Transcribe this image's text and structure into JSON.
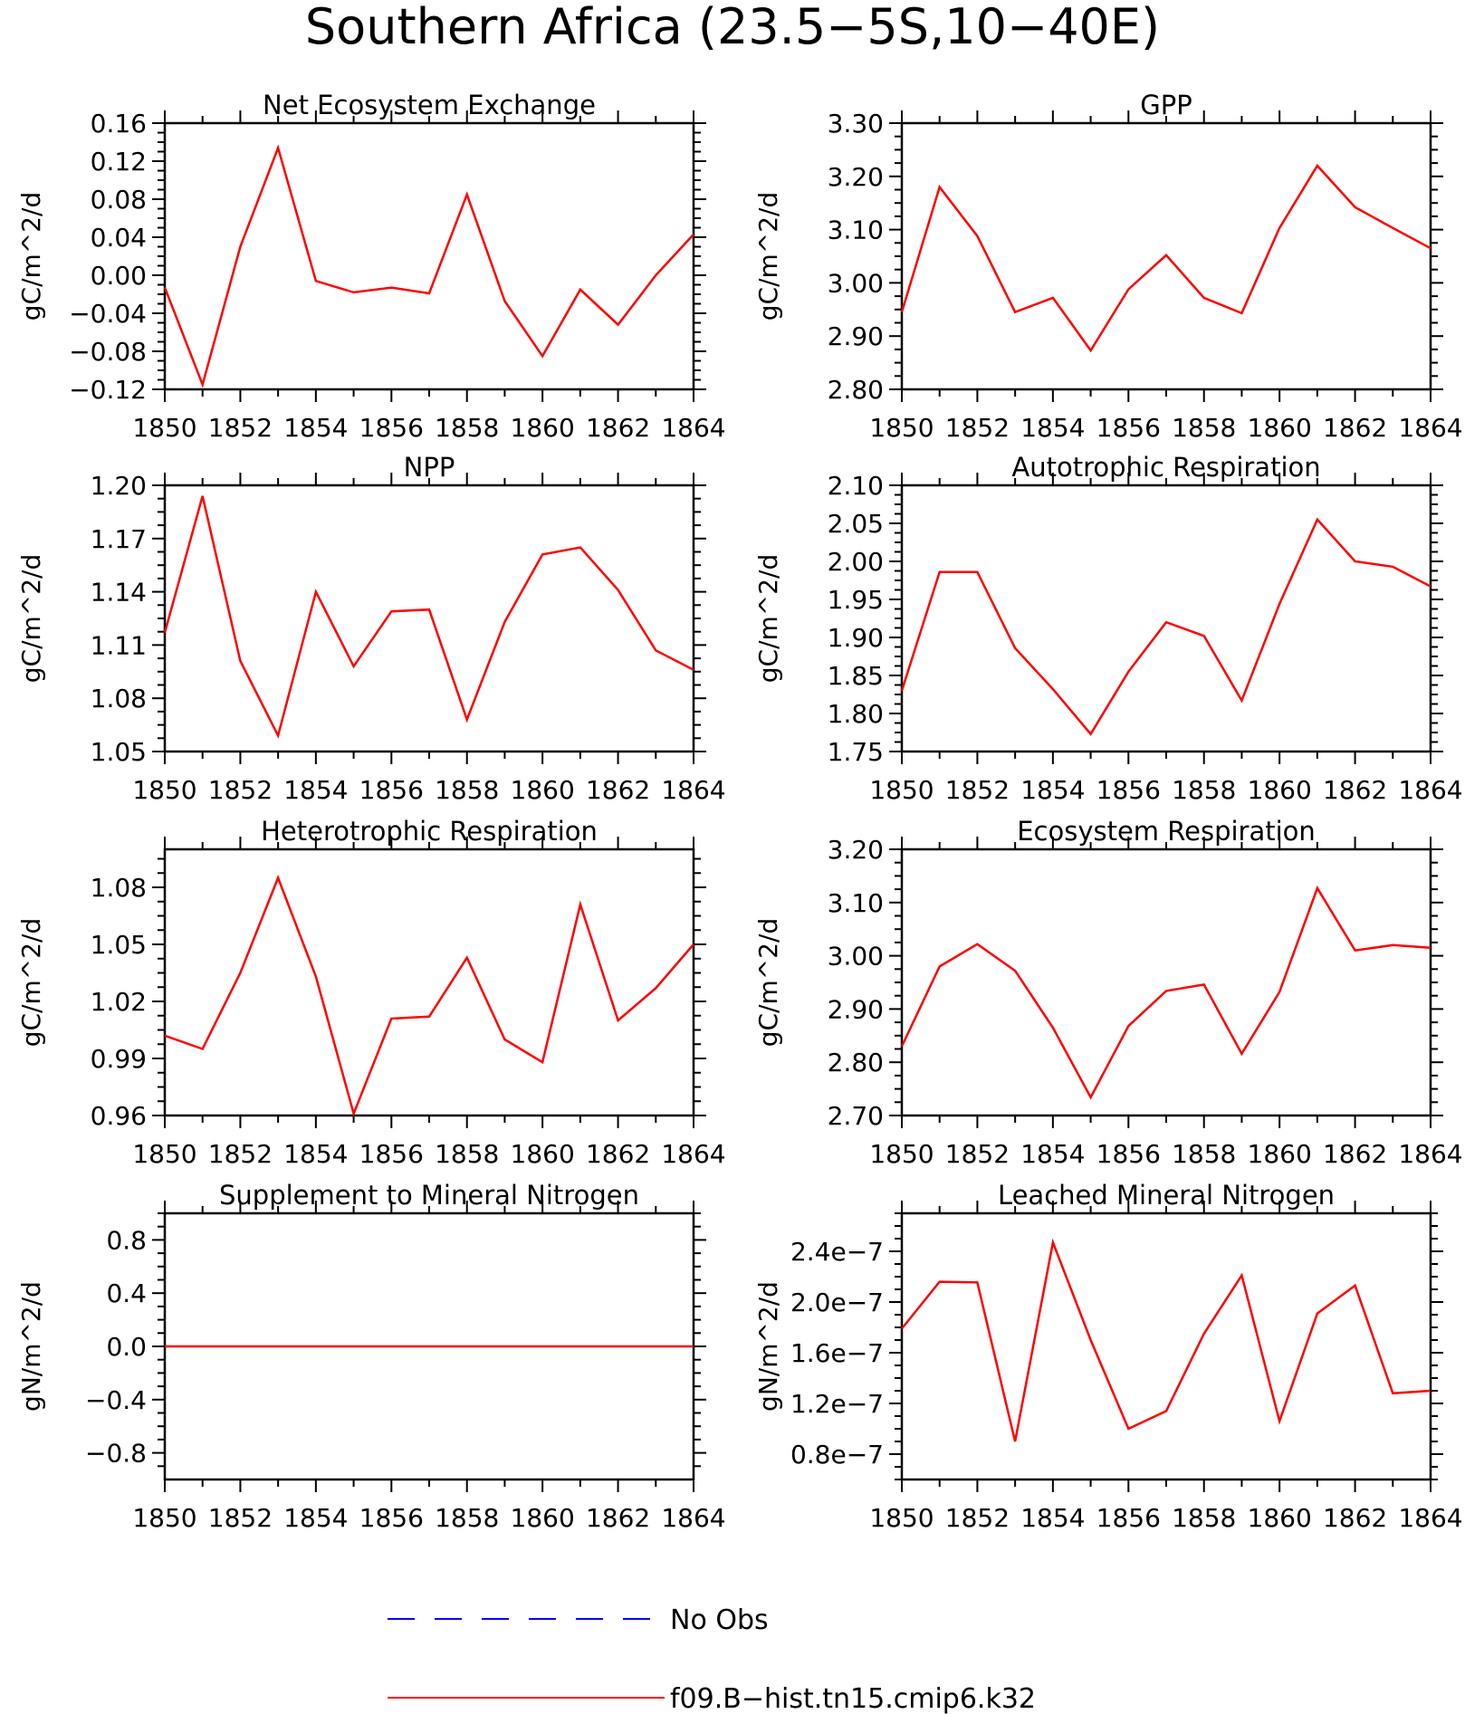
{
  "figure": {
    "title": "Southern Africa (23.5−5S,10−40E)"
  },
  "colors": {
    "model_line": "#ff0000",
    "obs_line": "#0000ff",
    "axes": "#000000"
  },
  "legend": {
    "entries": [
      {
        "label": "No Obs",
        "style": "dashed",
        "color": "#0000ff"
      },
      {
        "label": "f09.B−hist.tn15.cmip6.k32",
        "style": "solid",
        "color": "#ff0000"
      }
    ]
  },
  "chart_data": [
    {
      "type": "line",
      "title": "Net Ecosystem Exchange",
      "ylabel": "gC/m^2/d",
      "xlim": [
        1850,
        1864
      ],
      "xticks": [
        1850,
        1852,
        1854,
        1856,
        1858,
        1860,
        1862,
        1864
      ],
      "xtick_labels": [
        "1850",
        "1852",
        "1854",
        "1856",
        "1858",
        "1860",
        "1862",
        "1864"
      ],
      "ylim": [
        -0.12,
        0.16
      ],
      "yticks": [
        -0.12,
        -0.08,
        -0.04,
        0.0,
        0.04,
        0.08,
        0.12,
        0.16
      ],
      "ytick_labels": [
        "−0.12",
        "−0.08",
        "−0.04",
        "0.00",
        "0.04",
        "0.08",
        "0.12",
        "0.16"
      ],
      "x": [
        1850,
        1851,
        1852,
        1853,
        1854,
        1855,
        1856,
        1857,
        1858,
        1859,
        1860,
        1861,
        1862,
        1863,
        1864
      ],
      "series": [
        {
          "name": "f09.B−hist.tn15.cmip6.k32",
          "values": [
            -0.013,
            -0.115,
            0.03,
            0.134,
            -0.006,
            -0.018,
            -0.013,
            -0.019,
            0.085,
            -0.027,
            -0.085,
            -0.015,
            -0.052,
            0.0,
            0.043
          ]
        }
      ]
    },
    {
      "type": "line",
      "title": "GPP",
      "ylabel": "gC/m^2/d",
      "xlim": [
        1850,
        1864
      ],
      "xticks": [
        1850,
        1852,
        1854,
        1856,
        1858,
        1860,
        1862,
        1864
      ],
      "xtick_labels": [
        "1850",
        "1852",
        "1854",
        "1856",
        "1858",
        "1860",
        "1862",
        "1864"
      ],
      "ylim": [
        2.8,
        3.3
      ],
      "yticks": [
        2.8,
        2.9,
        3.0,
        3.1,
        3.2,
        3.3
      ],
      "ytick_labels": [
        "2.80",
        "2.90",
        "3.00",
        "3.10",
        "3.20",
        "3.30"
      ],
      "x": [
        1850,
        1851,
        1852,
        1853,
        1854,
        1855,
        1856,
        1857,
        1858,
        1859,
        1860,
        1861,
        1862,
        1863,
        1864
      ],
      "series": [
        {
          "name": "f09.B−hist.tn15.cmip6.k32",
          "values": [
            2.945,
            3.18,
            3.088,
            2.945,
            2.972,
            2.873,
            2.988,
            3.052,
            2.972,
            2.943,
            3.103,
            3.22,
            3.142,
            3.103,
            3.065
          ]
        }
      ]
    },
    {
      "type": "line",
      "title": "NPP",
      "ylabel": "gC/m^2/d",
      "xlim": [
        1850,
        1864
      ],
      "xticks": [
        1850,
        1852,
        1854,
        1856,
        1858,
        1860,
        1862,
        1864
      ],
      "xtick_labels": [
        "1850",
        "1852",
        "1854",
        "1856",
        "1858",
        "1860",
        "1862",
        "1864"
      ],
      "ylim": [
        1.05,
        1.2
      ],
      "yticks": [
        1.05,
        1.08,
        1.11,
        1.14,
        1.17,
        1.2
      ],
      "ytick_labels": [
        "1.05",
        "1.08",
        "1.11",
        "1.14",
        "1.17",
        "1.20"
      ],
      "x": [
        1850,
        1851,
        1852,
        1853,
        1854,
        1855,
        1856,
        1857,
        1858,
        1859,
        1860,
        1861,
        1862,
        1863,
        1864
      ],
      "series": [
        {
          "name": "f09.B−hist.tn15.cmip6.k32",
          "values": [
            1.117,
            1.194,
            1.101,
            1.059,
            1.14,
            1.098,
            1.129,
            1.13,
            1.068,
            1.123,
            1.161,
            1.165,
            1.141,
            1.107,
            1.096
          ]
        }
      ]
    },
    {
      "type": "line",
      "title": "Autotrophic Respiration",
      "ylabel": "gC/m^2/d",
      "xlim": [
        1850,
        1864
      ],
      "xticks": [
        1850,
        1852,
        1854,
        1856,
        1858,
        1860,
        1862,
        1864
      ],
      "xtick_labels": [
        "1850",
        "1852",
        "1854",
        "1856",
        "1858",
        "1860",
        "1862",
        "1864"
      ],
      "ylim": [
        1.75,
        2.1
      ],
      "yticks": [
        1.75,
        1.8,
        1.85,
        1.9,
        1.95,
        2.0,
        2.05,
        2.1
      ],
      "ytick_labels": [
        "1.75",
        "1.80",
        "1.85",
        "1.90",
        "1.95",
        "2.00",
        "2.05",
        "2.10"
      ],
      "x": [
        1850,
        1851,
        1852,
        1853,
        1854,
        1855,
        1856,
        1857,
        1858,
        1859,
        1860,
        1861,
        1862,
        1863,
        1864
      ],
      "series": [
        {
          "name": "f09.B−hist.tn15.cmip6.k32",
          "values": [
            1.83,
            1.986,
            1.986,
            1.886,
            1.832,
            1.773,
            1.855,
            1.92,
            1.902,
            1.817,
            1.944,
            2.055,
            2.0,
            1.993,
            1.967
          ]
        }
      ]
    },
    {
      "type": "line",
      "title": "Heterotrophic Respiration",
      "ylabel": "gC/m^2/d",
      "xlim": [
        1850,
        1864
      ],
      "xticks": [
        1850,
        1852,
        1854,
        1856,
        1858,
        1860,
        1862,
        1864
      ],
      "xtick_labels": [
        "1850",
        "1852",
        "1854",
        "1856",
        "1858",
        "1860",
        "1862",
        "1864"
      ],
      "ylim": [
        0.96,
        1.1
      ],
      "yticks": [
        0.96,
        0.99,
        1.02,
        1.05,
        1.08
      ],
      "ytick_labels": [
        "0.96",
        "0.99",
        "1.02",
        "1.05",
        "1.08"
      ],
      "x": [
        1850,
        1851,
        1852,
        1853,
        1854,
        1855,
        1856,
        1857,
        1858,
        1859,
        1860,
        1861,
        1862,
        1863,
        1864
      ],
      "series": [
        {
          "name": "f09.B−hist.tn15.cmip6.k32",
          "values": [
            1.002,
            0.995,
            1.035,
            1.085,
            1.033,
            0.961,
            1.011,
            1.012,
            1.043,
            1.0,
            0.988,
            1.071,
            1.01,
            1.027,
            1.05
          ]
        }
      ]
    },
    {
      "type": "line",
      "title": "Ecosystem Respiration",
      "ylabel": "gC/m^2/d",
      "xlim": [
        1850,
        1864
      ],
      "xticks": [
        1850,
        1852,
        1854,
        1856,
        1858,
        1860,
        1862,
        1864
      ],
      "xtick_labels": [
        "1850",
        "1852",
        "1854",
        "1856",
        "1858",
        "1860",
        "1862",
        "1864"
      ],
      "ylim": [
        2.7,
        3.2
      ],
      "yticks": [
        2.7,
        2.8,
        2.9,
        3.0,
        3.1,
        3.2
      ],
      "ytick_labels": [
        "2.70",
        "2.80",
        "2.90",
        "3.00",
        "3.10",
        "3.20"
      ],
      "x": [
        1850,
        1851,
        1852,
        1853,
        1854,
        1855,
        1856,
        1857,
        1858,
        1859,
        1860,
        1861,
        1862,
        1863,
        1864
      ],
      "series": [
        {
          "name": "f09.B−hist.tn15.cmip6.k32",
          "values": [
            2.83,
            2.98,
            3.022,
            2.972,
            2.865,
            2.734,
            2.868,
            2.934,
            2.946,
            2.816,
            2.932,
            3.127,
            3.01,
            3.02,
            3.015
          ]
        }
      ]
    },
    {
      "type": "line",
      "title": "Supplement to Mineral Nitrogen",
      "ylabel": "gN/m^2/d",
      "xlim": [
        1850,
        1864
      ],
      "xticks": [
        1850,
        1852,
        1854,
        1856,
        1858,
        1860,
        1862,
        1864
      ],
      "xtick_labels": [
        "1850",
        "1852",
        "1854",
        "1856",
        "1858",
        "1860",
        "1862",
        "1864"
      ],
      "ylim": [
        -1.0,
        1.0
      ],
      "yticks": [
        -0.8,
        -0.4,
        0.0,
        0.4,
        0.8
      ],
      "ytick_labels": [
        "−0.8",
        "−0.4",
        "0.0",
        "0.4",
        "0.8"
      ],
      "x": [
        1850,
        1851,
        1852,
        1853,
        1854,
        1855,
        1856,
        1857,
        1858,
        1859,
        1860,
        1861,
        1862,
        1863,
        1864
      ],
      "series": [
        {
          "name": "f09.B−hist.tn15.cmip6.k32",
          "values": [
            0,
            0,
            0,
            0,
            0,
            0,
            0,
            0,
            0,
            0,
            0,
            0,
            0,
            0,
            0
          ]
        }
      ]
    },
    {
      "type": "line",
      "title": "Leached Mineral Nitrogen",
      "ylabel": "gN/m^2/d",
      "xlim": [
        1850,
        1864
      ],
      "xticks": [
        1850,
        1852,
        1854,
        1856,
        1858,
        1860,
        1862,
        1864
      ],
      "xtick_labels": [
        "1850",
        "1852",
        "1854",
        "1856",
        "1858",
        "1860",
        "1862",
        "1864"
      ],
      "ylim": [
        6e-08,
        2.7e-07
      ],
      "yticks": [
        8e-08,
        1.2e-07,
        1.6e-07,
        2e-07,
        2.4e-07
      ],
      "ytick_labels": [
        "0.8e−7",
        "1.2e−7",
        "1.6e−7",
        "2.0e−7",
        "2.4e−7"
      ],
      "x": [
        1850,
        1851,
        1852,
        1853,
        1854,
        1855,
        1856,
        1857,
        1858,
        1859,
        1860,
        1861,
        1862,
        1863,
        1864
      ],
      "series": [
        {
          "name": "f09.B−hist.tn15.cmip6.k32",
          "values": [
            1.79e-07,
            2.16e-07,
            2.155e-07,
            9e-08,
            2.47e-07,
            1.7e-07,
            1e-07,
            1.14e-07,
            1.75e-07,
            2.21e-07,
            1.06e-07,
            1.91e-07,
            2.13e-07,
            1.28e-07,
            1.3e-07
          ]
        }
      ]
    }
  ]
}
